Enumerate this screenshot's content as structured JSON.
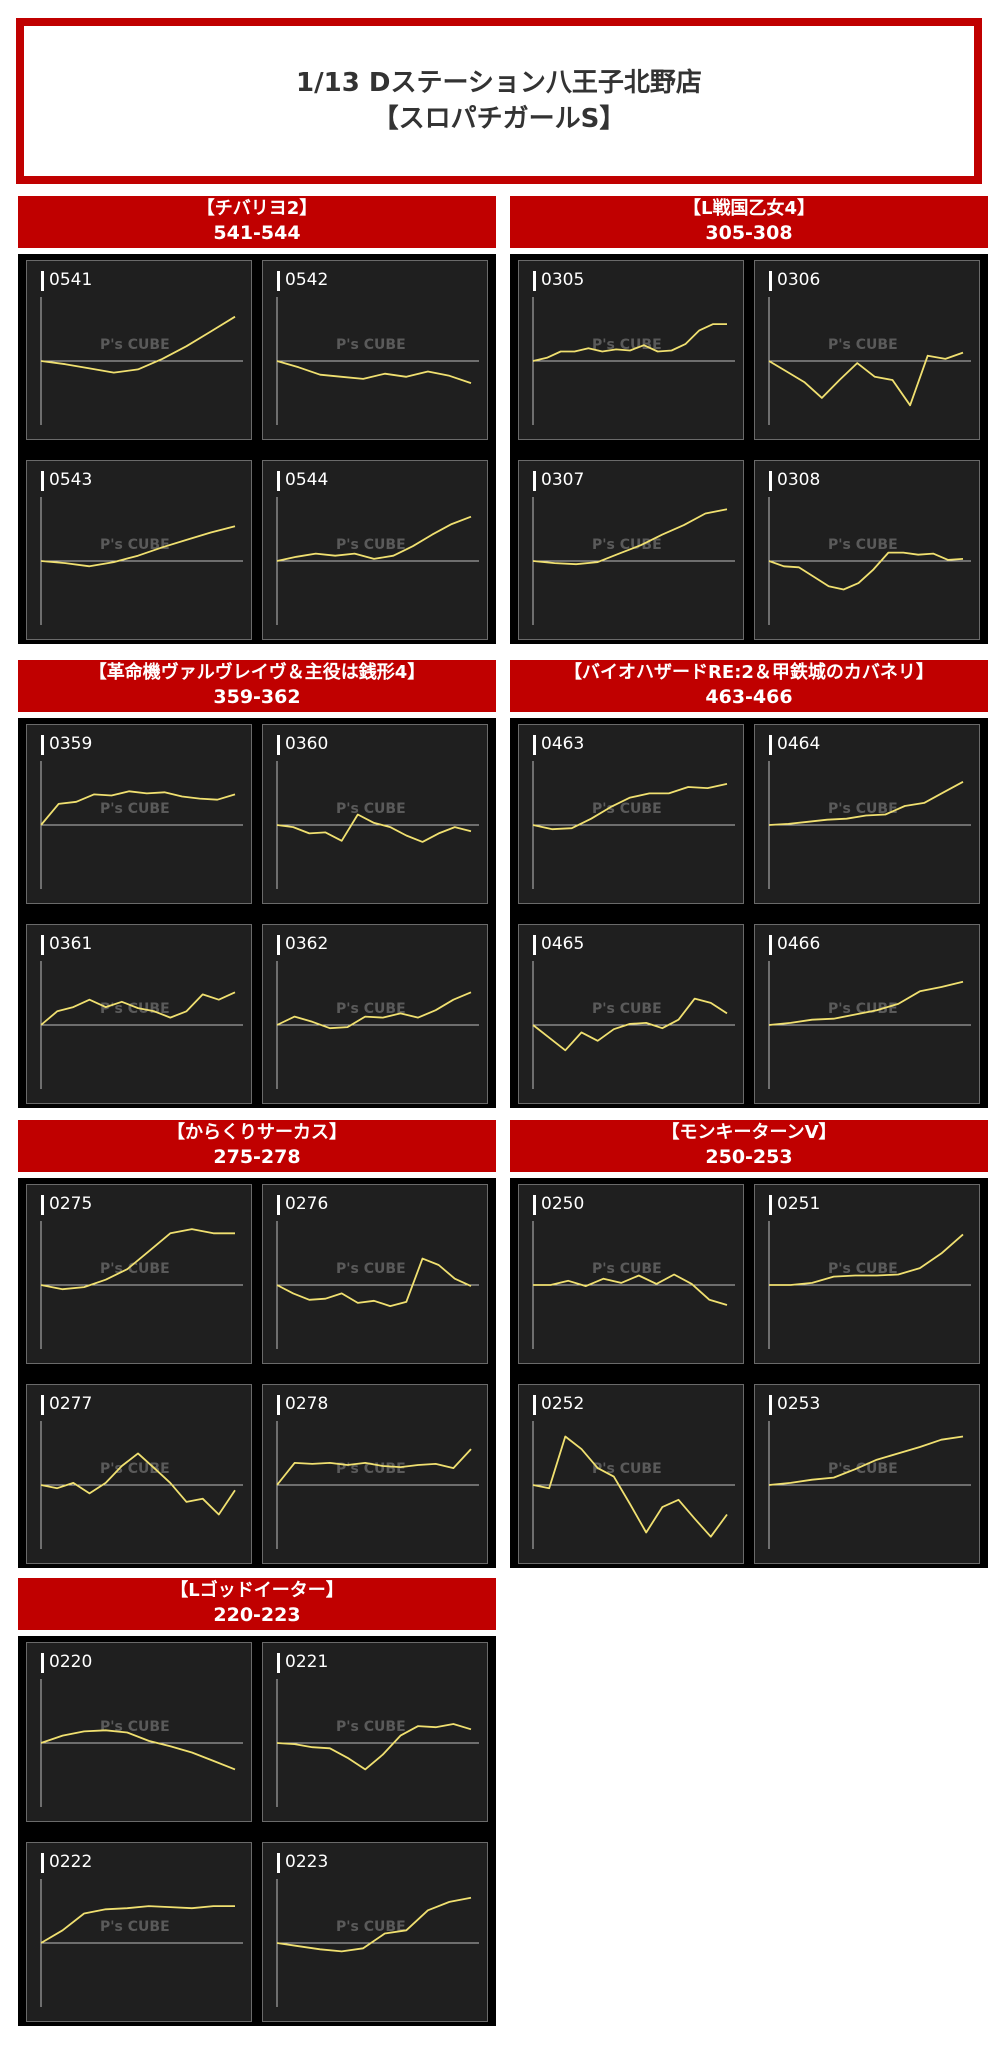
{
  "title": {
    "line1": "1/13 Dステーション八王子北野店",
    "line2": "【スロパチガールS】"
  },
  "watermark": "P's CUBE",
  "colors": {
    "header_bg": "#c00000",
    "line": "#f0e070",
    "panel_bg": "#1f1f1f"
  },
  "chart_data": [
    {
      "type": "line",
      "group_name": "【チバリヨ2】",
      "range": "541-544",
      "series": [
        {
          "name": "0541",
          "values": [
            0,
            -300,
            -700,
            -1100,
            -800,
            200,
            1400,
            2800,
            4200
          ]
        },
        {
          "name": "0542",
          "values": [
            0,
            -600,
            -1300,
            -1500,
            -1700,
            -1200,
            -1500,
            -1000,
            -1400,
            -2100
          ]
        },
        {
          "name": "0543",
          "values": [
            0,
            -200,
            -500,
            -100,
            500,
            1300,
            2000,
            2700,
            3300
          ]
        },
        {
          "name": "0544",
          "values": [
            0,
            400,
            700,
            500,
            700,
            200,
            500,
            1400,
            2500,
            3500,
            4200
          ]
        }
      ]
    },
    {
      "type": "line",
      "group_name": "【L戦国乙女4】",
      "range": "305-308",
      "series": [
        {
          "name": "0305",
          "values": [
            0,
            300,
            900,
            900,
            1200,
            900,
            1100,
            1000,
            1500,
            900,
            1000,
            1600,
            2900,
            3500,
            3500
          ]
        },
        {
          "name": "0306",
          "values": [
            0,
            -1000,
            -2000,
            -3500,
            -1800,
            -200,
            -1500,
            -1800,
            -4200,
            500,
            200,
            800
          ]
        },
        {
          "name": "0307",
          "values": [
            0,
            -200,
            -300,
            -100,
            700,
            1500,
            2500,
            3400,
            4500,
            4900
          ]
        },
        {
          "name": "0308",
          "values": [
            0,
            -500,
            -600,
            -1500,
            -2400,
            -2700,
            -2100,
            -800,
            800,
            800,
            600,
            700,
            100,
            200
          ]
        }
      ]
    },
    {
      "type": "line",
      "group_name": "【革命機ヴァルヴレイヴ＆主役は銭形4】",
      "range": "359-362",
      "series": [
        {
          "name": "0359",
          "values": [
            0,
            2000,
            2200,
            2900,
            2800,
            3200,
            3000,
            3100,
            2700,
            2500,
            2400,
            2900
          ]
        },
        {
          "name": "0360",
          "values": [
            0,
            -200,
            -800,
            -700,
            -1500,
            1000,
            200,
            -200,
            -1000,
            -1600,
            -800,
            -200,
            -600
          ]
        },
        {
          "name": "0361",
          "values": [
            0,
            1300,
            1700,
            2400,
            1700,
            2200,
            1600,
            1300,
            700,
            1300,
            2900,
            2400,
            3100
          ]
        },
        {
          "name": "0362",
          "values": [
            0,
            800,
            300,
            -300,
            -200,
            800,
            700,
            1100,
            700,
            1400,
            2400,
            3100
          ]
        }
      ]
    },
    {
      "type": "line",
      "group_name": "【バイオハザードRE:2＆甲鉄城のカバネリ】",
      "range": "463-466",
      "series": [
        {
          "name": "0463",
          "values": [
            0,
            -400,
            -300,
            600,
            1700,
            2600,
            3000,
            3000,
            3600,
            3500,
            3900
          ]
        },
        {
          "name": "0464",
          "values": [
            0,
            100,
            300,
            500,
            600,
            900,
            1000,
            1800,
            2100,
            3100,
            4100
          ]
        },
        {
          "name": "0465",
          "values": [
            0,
            -1200,
            -2400,
            -700,
            -1500,
            -400,
            100,
            200,
            -300,
            500,
            2500,
            2100,
            1100
          ]
        },
        {
          "name": "0466",
          "values": [
            0,
            200,
            500,
            600,
            1000,
            1400,
            2000,
            3200,
            3600,
            4100
          ]
        }
      ]
    },
    {
      "type": "line",
      "group_name": "【からくりサーカス】",
      "range": "275-278",
      "series": [
        {
          "name": "0275",
          "values": [
            0,
            -400,
            -200,
            500,
            1500,
            3200,
            4900,
            5300,
            4900,
            4900
          ]
        },
        {
          "name": "0276",
          "values": [
            0,
            -800,
            -1400,
            -1300,
            -800,
            -1700,
            -1500,
            -2000,
            -1600,
            2500,
            1900,
            600,
            -100
          ]
        },
        {
          "name": "0277",
          "values": [
            0,
            -300,
            200,
            -800,
            200,
            1800,
            3000,
            1600,
            200,
            -1600,
            -1300,
            -2800,
            -500
          ]
        },
        {
          "name": "0278",
          "values": [
            0,
            2100,
            2000,
            2100,
            1900,
            2100,
            1800,
            1700,
            1900,
            2000,
            1600,
            3400
          ]
        }
      ]
    },
    {
      "type": "line",
      "group_name": "【モンキーターンⅤ】",
      "range": "250-253",
      "series": [
        {
          "name": "0250",
          "values": [
            0,
            0,
            400,
            -100,
            600,
            200,
            900,
            100,
            1000,
            100,
            -1400,
            -1900
          ]
        },
        {
          "name": "0251",
          "values": [
            0,
            0,
            200,
            800,
            900,
            900,
            1000,
            1600,
            3000,
            4800
          ]
        },
        {
          "name": "0252",
          "values": [
            0,
            -300,
            4600,
            3400,
            1600,
            800,
            -1800,
            -4500,
            -2100,
            -1400,
            -3200,
            -4900,
            -2800
          ]
        },
        {
          "name": "0253",
          "values": [
            0,
            200,
            500,
            700,
            1500,
            2400,
            3000,
            3600,
            4300,
            4600
          ]
        }
      ]
    },
    {
      "type": "line",
      "group_name": "【Lゴッドイーター】",
      "range": "220-223",
      "series": [
        {
          "name": "0220",
          "values": [
            0,
            700,
            1100,
            1200,
            1000,
            200,
            -300,
            -900,
            -1700,
            -2500
          ]
        },
        {
          "name": "0221",
          "values": [
            0,
            -100,
            -400,
            -500,
            -1400,
            -2500,
            -1100,
            700,
            1600,
            1500,
            1800,
            1300
          ]
        },
        {
          "name": "0222",
          "values": [
            0,
            1200,
            2800,
            3200,
            3300,
            3500,
            3400,
            3300,
            3500,
            3500
          ]
        },
        {
          "name": "0223",
          "values": [
            0,
            -300,
            -600,
            -800,
            -500,
            900,
            1200,
            3100,
            3900,
            4300
          ]
        }
      ]
    }
  ]
}
